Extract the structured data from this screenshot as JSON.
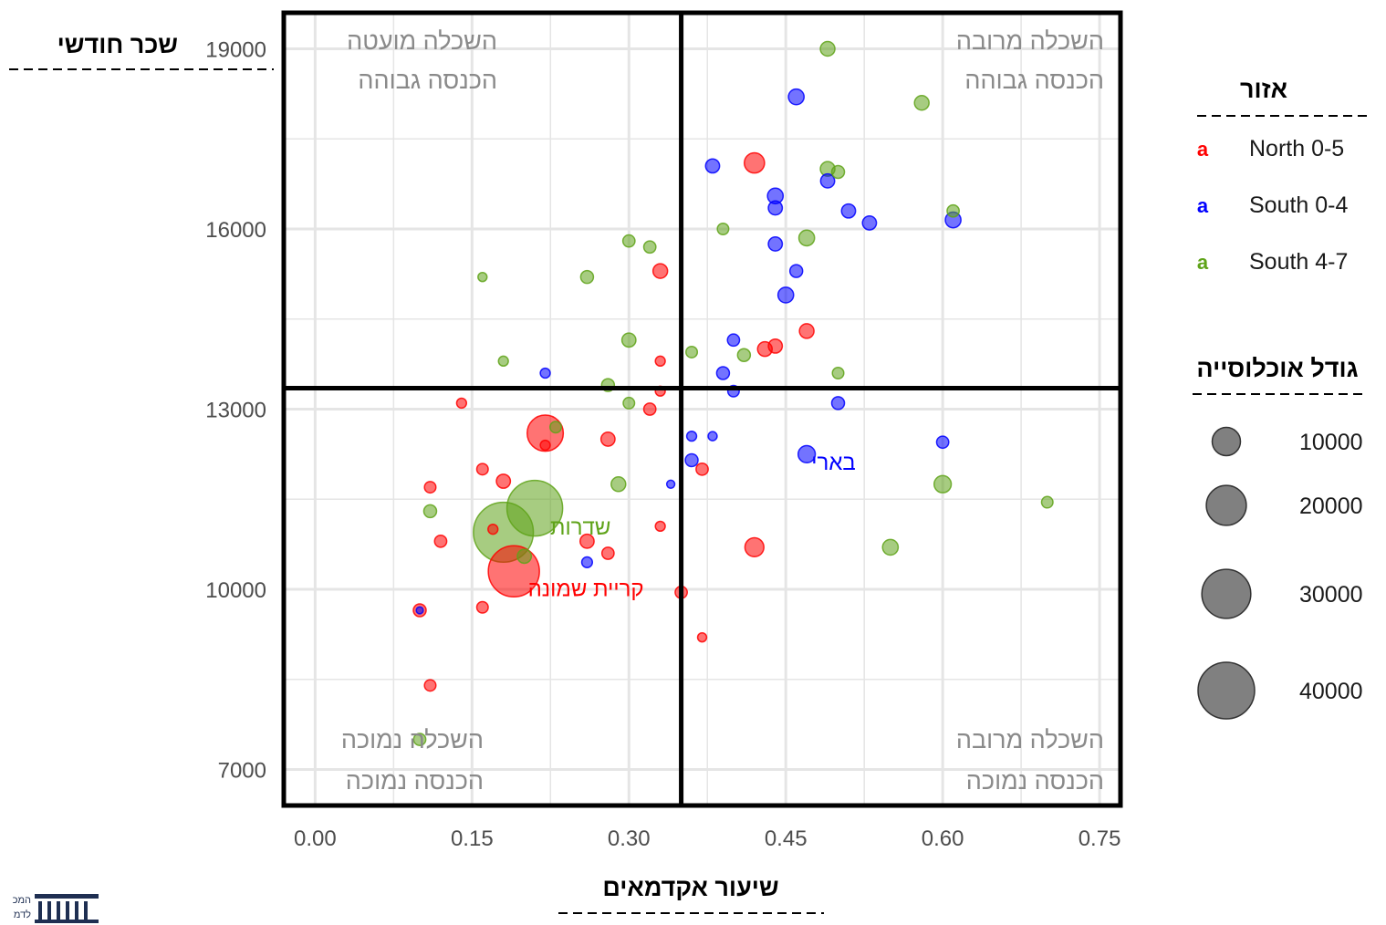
{
  "chart_data": {
    "type": "scatter",
    "xlabel": "שיעור אקדמאים",
    "ylabel": "שכר חודשי",
    "xlim": [
      -0.03,
      0.77
    ],
    "ylim": [
      6400,
      19600
    ],
    "xticks": [
      "0.00",
      "0.15",
      "0.30",
      "0.45",
      "0.60",
      "0.75"
    ],
    "yticks": [
      "7000",
      "10000",
      "13000",
      "16000",
      "19000"
    ],
    "grid": true,
    "reference_lines": {
      "x": 0.35,
      "y": 13350
    },
    "quadrant_labels": {
      "top_left": [
        "השכלה מועטה",
        "הכנסה גבוהה"
      ],
      "top_right": [
        "השכלה מרובה",
        "הכנסה גבוהה"
      ],
      "bottom_left": [
        "השכלה נמוכה",
        "הכנסה נמוכה"
      ],
      "bottom_right": [
        "השכלה מרובה",
        "הכנסה נמוכה"
      ]
    },
    "color_legend": {
      "title": "אזור",
      "key_glyph": "a",
      "items": [
        {
          "name": "North 0-5",
          "color": "#ff0000"
        },
        {
          "name": "South 0-4",
          "color": "#0000ff"
        },
        {
          "name": "South 4-7",
          "color": "#5fa319"
        }
      ]
    },
    "size_legend": {
      "title": "גודל אוכלוסייה",
      "items": [
        "10000",
        "20000",
        "30000",
        "40000"
      ],
      "values": [
        10000,
        20000,
        30000,
        40000
      ]
    },
    "series": [
      {
        "name": "North 0-5",
        "color": "#ff0000",
        "points": [
          [
            0.42,
            17100,
            2500
          ],
          [
            0.33,
            15300,
            1300
          ],
          [
            0.47,
            14300,
            1300
          ],
          [
            0.43,
            14000,
            1300
          ],
          [
            0.44,
            14050,
            1200
          ],
          [
            0.33,
            13800,
            600
          ],
          [
            0.33,
            13300,
            600
          ],
          [
            0.14,
            13100,
            600
          ],
          [
            0.32,
            13000,
            900
          ],
          [
            0.22,
            12600,
            8000
          ],
          [
            0.22,
            12400,
            600
          ],
          [
            0.28,
            12500,
            1200
          ],
          [
            0.16,
            12000,
            800
          ],
          [
            0.18,
            11800,
            1200
          ],
          [
            0.11,
            11700,
            800
          ],
          [
            0.37,
            12000,
            900
          ],
          [
            0.33,
            11050,
            600
          ],
          [
            0.17,
            11000,
            600
          ],
          [
            0.12,
            10800,
            900
          ],
          [
            0.26,
            10800,
            1200
          ],
          [
            0.28,
            10600,
            900
          ],
          [
            0.42,
            10700,
            2200
          ],
          [
            0.19,
            10300,
            16000
          ],
          [
            0.35,
            9950,
            900
          ],
          [
            0.1,
            9650,
            1000
          ],
          [
            0.16,
            9700,
            800
          ],
          [
            0.37,
            9200,
            500
          ],
          [
            0.11,
            8400,
            800
          ]
        ],
        "labels": [
          {
            "text": "קריית שמונה",
            "x": 0.19,
            "y": 10300
          }
        ]
      },
      {
        "name": "South 0-4",
        "color": "#0000ff",
        "points": [
          [
            0.46,
            18200,
            1500
          ],
          [
            0.38,
            17050,
            1200
          ],
          [
            0.49,
            16800,
            1200
          ],
          [
            0.44,
            16550,
            1500
          ],
          [
            0.44,
            16350,
            1200
          ],
          [
            0.51,
            16300,
            1200
          ],
          [
            0.53,
            16100,
            1200
          ],
          [
            0.61,
            16150,
            1500
          ],
          [
            0.44,
            15750,
            1200
          ],
          [
            0.46,
            15300,
            1000
          ],
          [
            0.45,
            14900,
            1500
          ],
          [
            0.4,
            14150,
            900
          ],
          [
            0.39,
            13600,
            1000
          ],
          [
            0.22,
            13600,
            600
          ],
          [
            0.4,
            13300,
            800
          ],
          [
            0.5,
            13100,
            1000
          ],
          [
            0.36,
            12550,
            600
          ],
          [
            0.38,
            12550,
            500
          ],
          [
            0.6,
            12450,
            900
          ],
          [
            0.36,
            12150,
            1000
          ],
          [
            0.47,
            12250,
            1800
          ],
          [
            0.34,
            11750,
            400
          ],
          [
            0.26,
            10450,
            700
          ],
          [
            0.1,
            9650,
            300
          ]
        ],
        "labels": [
          {
            "text": "בארי",
            "x": 0.47,
            "y": 12250
          }
        ]
      },
      {
        "name": "South 4-7",
        "color": "#5fa319",
        "points": [
          [
            0.49,
            19000,
            1300
          ],
          [
            0.58,
            18100,
            1300
          ],
          [
            0.49,
            17000,
            1300
          ],
          [
            0.5,
            16950,
            1000
          ],
          [
            0.61,
            16300,
            900
          ],
          [
            0.47,
            15850,
            1500
          ],
          [
            0.39,
            16000,
            800
          ],
          [
            0.3,
            15800,
            900
          ],
          [
            0.32,
            15700,
            900
          ],
          [
            0.16,
            15200,
            500
          ],
          [
            0.26,
            15200,
            1000
          ],
          [
            0.3,
            14150,
            1200
          ],
          [
            0.36,
            13950,
            800
          ],
          [
            0.41,
            13900,
            1000
          ],
          [
            0.18,
            13800,
            600
          ],
          [
            0.5,
            13600,
            800
          ],
          [
            0.28,
            13400,
            1000
          ],
          [
            0.3,
            13100,
            800
          ],
          [
            0.23,
            12700,
            800
          ],
          [
            0.29,
            11750,
            1300
          ],
          [
            0.21,
            11350,
            19000
          ],
          [
            0.18,
            10950,
            22000
          ],
          [
            0.6,
            11750,
            1800
          ],
          [
            0.7,
            11450,
            800
          ],
          [
            0.11,
            11300,
            1000
          ],
          [
            0.55,
            10700,
            1500
          ],
          [
            0.2,
            10550,
            1200
          ],
          [
            0.1,
            7500,
            900
          ]
        ],
        "labels": [
          {
            "text": "שדרות",
            "x": 0.21,
            "y": 11350
          }
        ]
      }
    ]
  },
  "logo": {
    "lines": [
      "המכ",
      "לדמ"
    ]
  }
}
